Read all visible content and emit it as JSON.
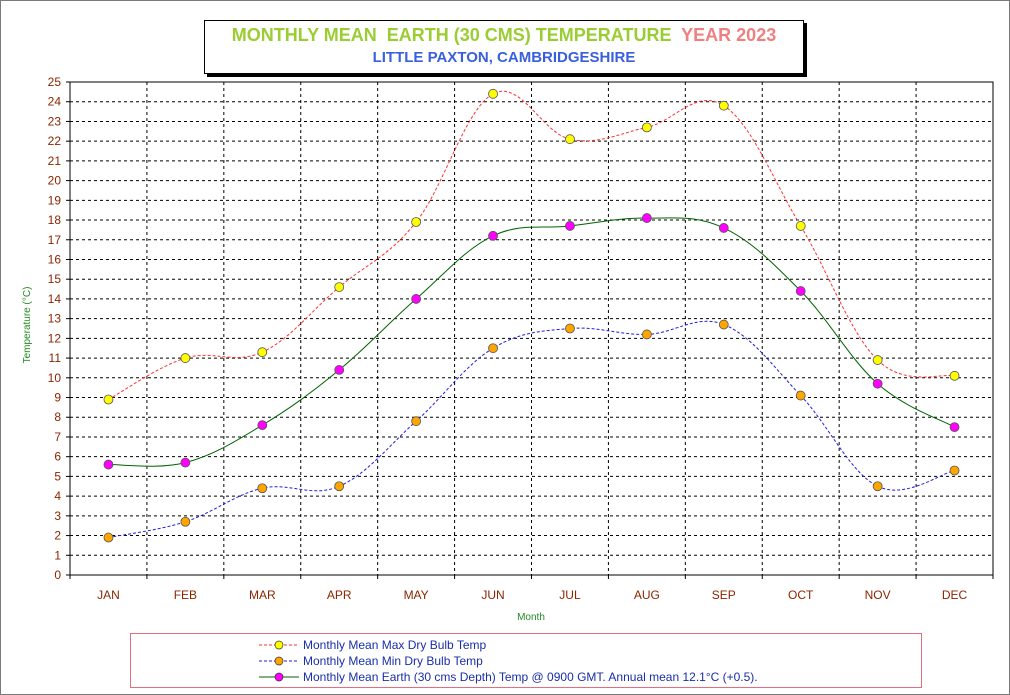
{
  "title": {
    "main": "MONTHLY MEAN  EARTH (30 CMS) TEMPERATURE",
    "year": "YEAR 2023",
    "subtitle": "LITTLE PAXTON, CAMBRIDGESHIRE"
  },
  "colors": {
    "title_main": "#9acd32",
    "title_year": "#f08080",
    "subtitle": "#3a5fdc",
    "axis_labels": "#8b2500",
    "axis_title": "#228b22",
    "max_line": "#ff3030",
    "max_marker": "#ffff00",
    "min_line": "#1e1ee0",
    "min_marker": "#ffa500",
    "earth_line": "#006400",
    "earth_marker": "#ff00ff",
    "legend_border": "#e07080",
    "legend_text": "#1a2ea8"
  },
  "chart_data": {
    "type": "line",
    "title": "MONTHLY MEAN  EARTH (30 CMS) TEMPERATURE  YEAR 2023",
    "subtitle": "LITTLE PAXTON, CAMBRIDGESHIRE",
    "xlabel": "Month",
    "ylabel": "Temperature (°C)",
    "ylim": [
      0,
      25
    ],
    "yticks": [
      0,
      1,
      2,
      3,
      4,
      5,
      6,
      7,
      8,
      9,
      10,
      11,
      12,
      13,
      14,
      15,
      16,
      17,
      18,
      19,
      20,
      21,
      22,
      23,
      24,
      25
    ],
    "grid": true,
    "legend_position": "bottom",
    "categories": [
      "JAN",
      "FEB",
      "MAR",
      "APR",
      "MAY",
      "JUN",
      "JUL",
      "AUG",
      "SEP",
      "OCT",
      "NOV",
      "DEC"
    ],
    "series": [
      {
        "name": "Monthly Mean Max Dry Bulb Temp",
        "line_style": "dashed",
        "values": [
          8.9,
          11.0,
          11.3,
          14.6,
          17.9,
          24.4,
          22.1,
          22.7,
          23.8,
          17.7,
          10.9,
          10.1
        ]
      },
      {
        "name": "Monthly Mean Min Dry Bulb Temp",
        "line_style": "dashed",
        "values": [
          1.9,
          2.7,
          4.4,
          4.5,
          7.8,
          11.5,
          12.5,
          12.2,
          12.7,
          9.1,
          4.5,
          5.3
        ]
      },
      {
        "name": "Monthly Mean Earth (30 cms Depth) Temp @ 0900 GMT. Annual mean 12.1°C (+0.5).",
        "line_style": "solid",
        "values": [
          5.6,
          5.7,
          7.6,
          10.4,
          14.0,
          17.2,
          17.7,
          18.1,
          17.6,
          14.4,
          9.7,
          7.5
        ]
      }
    ]
  }
}
